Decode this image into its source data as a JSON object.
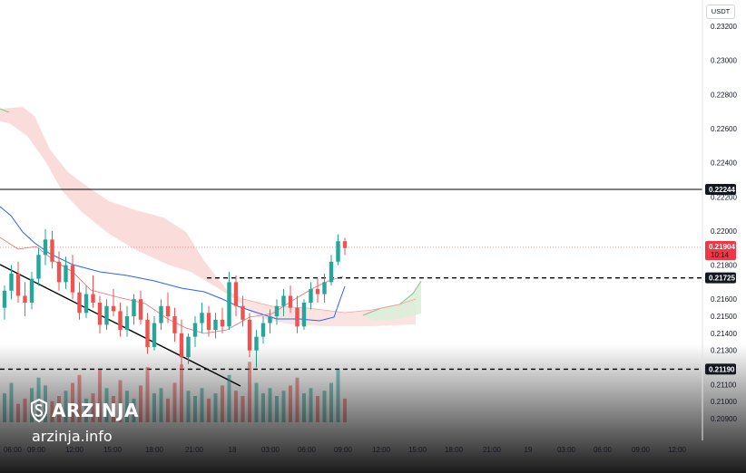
{
  "currency_label": "USDT",
  "brand": {
    "name": "ARZINJA",
    "site": "arzinja.info"
  },
  "colors": {
    "up": "#26a69a",
    "down": "#ef5350",
    "cloud": "#f9d7d5",
    "cloud_green": "#dbeed9",
    "kijun": "#2962ff",
    "price_tag": "#f23645",
    "level_tag": "#131722"
  },
  "chart_data": {
    "type": "candlestick",
    "ylim": [
      0.2085,
      0.2335
    ],
    "y_ticks": [
      "0.23200",
      "0.23000",
      "0.22800",
      "0.22600",
      "0.22400",
      "0.22200",
      "0.22000",
      "0.21800",
      "0.21600",
      "0.21500",
      "0.21400",
      "0.21300",
      "0.21100",
      "0.21000",
      "0.20900"
    ],
    "x_ticks": [
      "06:00",
      "09:00",
      "12:00",
      "15:00",
      "18:00",
      "21:00",
      "18",
      "03:00",
      "06:00",
      "09:00",
      "12:00",
      "15:00",
      "18:00",
      "21:00",
      "19",
      "03:00",
      "06:00",
      "09:00",
      "12:00"
    ],
    "price": {
      "value": "0.21904",
      "countdown": "10:14"
    },
    "levels": [
      {
        "value": 0.22244,
        "label": "0.22244",
        "style": "solid"
      },
      {
        "value": 0.21725,
        "label": "0.21725",
        "style": "dashed"
      },
      {
        "value": 0.2119,
        "label": "0.21190",
        "style": "dashed"
      }
    ],
    "candles": [
      [
        0.2155,
        0.2168,
        0.2148,
        0.2165
      ],
      [
        0.2165,
        0.218,
        0.216,
        0.2175
      ],
      [
        0.2175,
        0.2182,
        0.2158,
        0.2162
      ],
      [
        0.2162,
        0.217,
        0.215,
        0.2158
      ],
      [
        0.2158,
        0.2176,
        0.2154,
        0.2172
      ],
      [
        0.2172,
        0.219,
        0.2168,
        0.2186
      ],
      [
        0.2186,
        0.2201,
        0.218,
        0.2195
      ],
      [
        0.2195,
        0.22,
        0.2178,
        0.2182
      ],
      [
        0.2182,
        0.2188,
        0.2165,
        0.217
      ],
      [
        0.217,
        0.2185,
        0.2166,
        0.218
      ],
      [
        0.218,
        0.2186,
        0.216,
        0.2164
      ],
      [
        0.2164,
        0.217,
        0.2148,
        0.2152
      ],
      [
        0.2152,
        0.2168,
        0.2149,
        0.2163
      ],
      [
        0.2163,
        0.2174,
        0.2155,
        0.2158
      ],
      [
        0.2158,
        0.2162,
        0.214,
        0.2145
      ],
      [
        0.2145,
        0.216,
        0.2142,
        0.2156
      ],
      [
        0.2156,
        0.2166,
        0.215,
        0.2153
      ],
      [
        0.2153,
        0.2158,
        0.2138,
        0.2142
      ],
      [
        0.2142,
        0.2156,
        0.2138,
        0.215
      ],
      [
        0.215,
        0.2163,
        0.2145,
        0.216
      ],
      [
        0.216,
        0.2165,
        0.2145,
        0.2148
      ],
      [
        0.2148,
        0.2152,
        0.2128,
        0.2132
      ],
      [
        0.2132,
        0.215,
        0.213,
        0.2146
      ],
      [
        0.2146,
        0.216,
        0.2142,
        0.2156
      ],
      [
        0.2156,
        0.2164,
        0.2146,
        0.215
      ],
      [
        0.215,
        0.2155,
        0.2135,
        0.214
      ],
      [
        0.214,
        0.2148,
        0.212,
        0.2126
      ],
      [
        0.2126,
        0.214,
        0.2122,
        0.2138
      ],
      [
        0.2138,
        0.215,
        0.2132,
        0.2146
      ],
      [
        0.2146,
        0.2158,
        0.214,
        0.2152
      ],
      [
        0.2152,
        0.2156,
        0.2138,
        0.2142
      ],
      [
        0.2142,
        0.2152,
        0.2137,
        0.2148
      ],
      [
        0.2148,
        0.2155,
        0.214,
        0.2144
      ],
      [
        0.2144,
        0.2176,
        0.2142,
        0.217
      ],
      [
        0.217,
        0.2174,
        0.215,
        0.2156
      ],
      [
        0.2156,
        0.2162,
        0.2144,
        0.2148
      ],
      [
        0.2148,
        0.2152,
        0.2126,
        0.213
      ],
      [
        0.213,
        0.2142,
        0.212,
        0.2138
      ],
      [
        0.2138,
        0.215,
        0.2134,
        0.2146
      ],
      [
        0.2146,
        0.2154,
        0.214,
        0.215
      ],
      [
        0.215,
        0.216,
        0.2145,
        0.2156
      ],
      [
        0.2156,
        0.2166,
        0.215,
        0.2162
      ],
      [
        0.2162,
        0.2168,
        0.2152,
        0.2155
      ],
      [
        0.2155,
        0.2162,
        0.214,
        0.2144
      ],
      [
        0.2144,
        0.216,
        0.2142,
        0.2158
      ],
      [
        0.2158,
        0.217,
        0.2154,
        0.2166
      ],
      [
        0.2166,
        0.2172,
        0.2158,
        0.2163
      ],
      [
        0.2163,
        0.2175,
        0.2158,
        0.217
      ],
      [
        0.217,
        0.2186,
        0.2168,
        0.2182
      ],
      [
        0.2182,
        0.2198,
        0.218,
        0.2194
      ],
      [
        0.2194,
        0.2196,
        0.2186,
        0.219
      ]
    ],
    "volumes": [
      22,
      30,
      14,
      18,
      26,
      34,
      28,
      16,
      20,
      24,
      30,
      36,
      18,
      22,
      40,
      26,
      20,
      32,
      24,
      18,
      28,
      42,
      22,
      26,
      18,
      30,
      44,
      24,
      20,
      26,
      18,
      22,
      28,
      36,
      24,
      20,
      46,
      30,
      22,
      26,
      20,
      24,
      28,
      34,
      22,
      26,
      20,
      24,
      30,
      40,
      18
    ]
  }
}
